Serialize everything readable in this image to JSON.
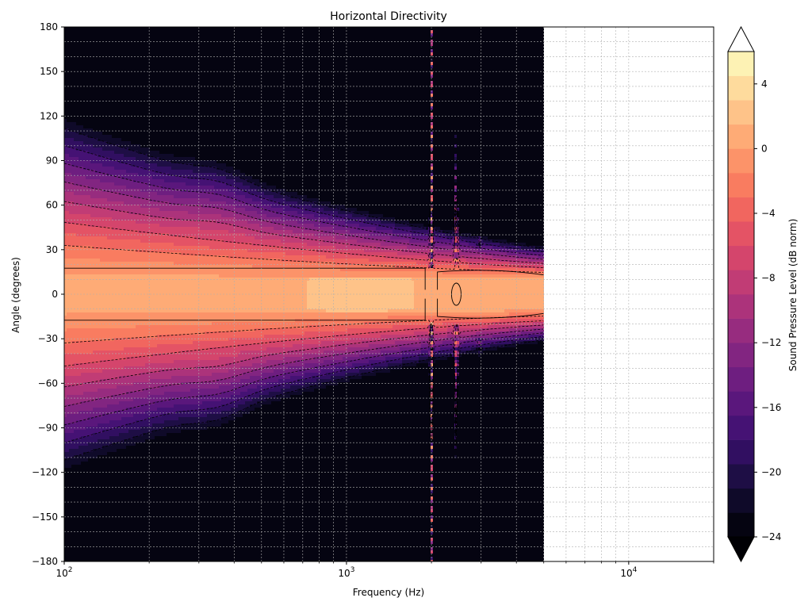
{
  "chart_data": {
    "type": "heatmap",
    "title": "Horizontal Directivity",
    "xlabel": "Frequency (Hz)",
    "ylabel": "Angle (degrees)",
    "x_scale": "log",
    "xlim": [
      100,
      20000
    ],
    "ylim": [
      -180,
      180
    ],
    "data_x_max": 5000,
    "grid": true,
    "x_ticks": [
      {
        "value": 100,
        "base": "10",
        "exp": "2"
      },
      {
        "value": 1000,
        "base": "10",
        "exp": "3"
      },
      {
        "value": 10000,
        "base": "10",
        "exp": "4"
      }
    ],
    "y_ticks": [
      180,
      150,
      120,
      90,
      60,
      30,
      0,
      -30,
      -60,
      -90,
      -120,
      -150,
      -180
    ],
    "y_tick_labels": [
      "180",
      "150",
      "120",
      "90",
      "60",
      "30",
      "0",
      "−30",
      "−60",
      "−90",
      "−120",
      "−150",
      "−180"
    ],
    "colorbar": {
      "label": "Sound Pressure Level (dB norm)",
      "min": -24,
      "max": 6,
      "step": 1.5,
      "ticks": [
        4,
        0,
        -4,
        -8,
        -12,
        -16,
        -20,
        -24
      ],
      "tick_labels": [
        "4",
        "0",
        "−4",
        "−8",
        "−12",
        "−16",
        "−20",
        "−24"
      ],
      "colormap": "magma",
      "extend": "both"
    }
  }
}
